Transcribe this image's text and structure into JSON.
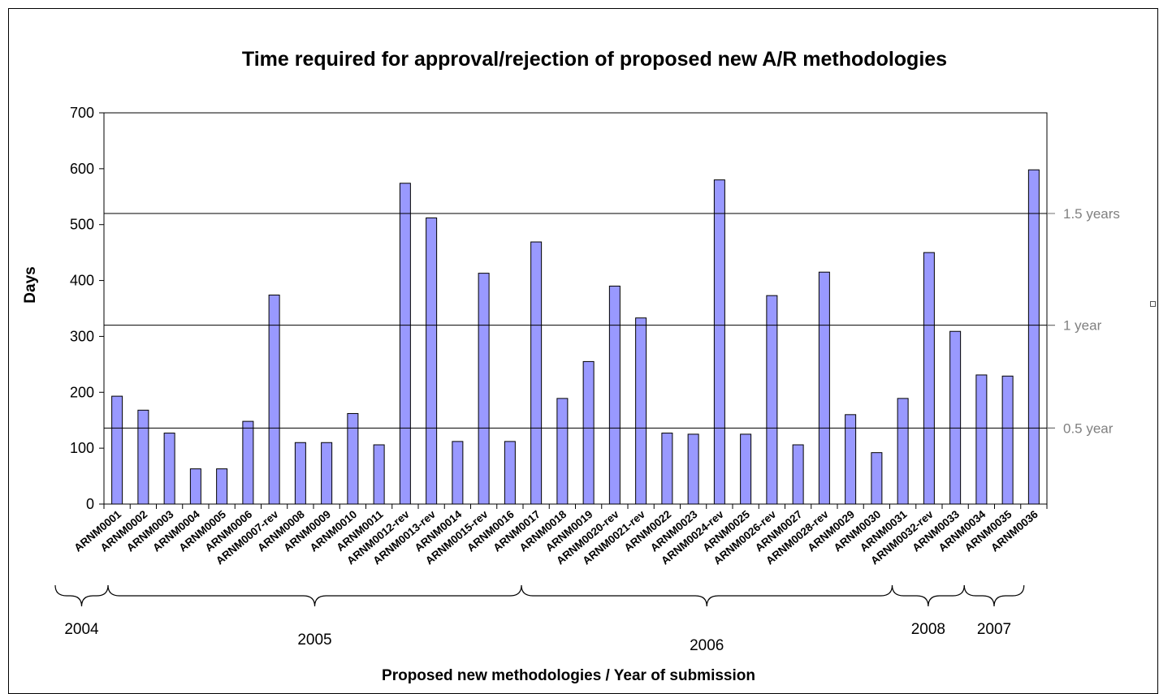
{
  "chart_data": {
    "type": "bar",
    "title": "Time required for approval/rejection of proposed new A/R methodologies",
    "xlabel": "Proposed new methodologies / Year of submission",
    "ylabel": "Days",
    "ylim": [
      0,
      700
    ],
    "yticks": [
      0,
      100,
      200,
      300,
      400,
      500,
      600,
      700
    ],
    "bar_color": "#9999FF",
    "categories": [
      "ARNM0001",
      "ARNM0002",
      "ARNM0003",
      "ARNM0004",
      "ARNM0005",
      "ARNM0006",
      "ARNM0007-rev",
      "ARNM0008",
      "ARNM0009",
      "ARNM0010",
      "ARNM0011",
      "ARNM0012-rev",
      "ARNM0013-rev",
      "ARNM0014",
      "ARNM0015-rev",
      "ARNM0016",
      "ARNM0017",
      "ARNM0018",
      "ARNM0019",
      "ARNM0020-rev",
      "ARNM0021-rev",
      "ARNM0022",
      "ARNM0023",
      "ARNM0024-rev",
      "ARNM0025",
      "ARNM0026-rev",
      "ARNM0027",
      "ARNM0028-rev",
      "ARNM0029",
      "ARNM0030",
      "ARNM0031",
      "ARNM0032-rev",
      "ARNM0033",
      "ARNM0034",
      "ARNM0035",
      "ARNM0036"
    ],
    "values": [
      193,
      168,
      127,
      63,
      63,
      148,
      374,
      110,
      110,
      162,
      106,
      574,
      512,
      112,
      413,
      112,
      469,
      189,
      255,
      390,
      333,
      127,
      125,
      580,
      125,
      373,
      106,
      415,
      160,
      92,
      189,
      450,
      309,
      231,
      229,
      598
    ],
    "reference_lines": [
      {
        "label": "1.5 years",
        "value": 520
      },
      {
        "label": "1 year",
        "value": 320
      },
      {
        "label": "0.5 year",
        "value": 136
      }
    ],
    "year_groups": [
      {
        "label": "2004",
        "first": 0,
        "last": 0
      },
      {
        "label": "2005",
        "first": 1,
        "last": 15
      },
      {
        "label": "2006",
        "first": 16,
        "last": 29
      },
      {
        "label": "2008",
        "first": 30,
        "last": 32
      },
      {
        "label": "2007",
        "first": 33,
        "last": 34
      }
    ]
  }
}
